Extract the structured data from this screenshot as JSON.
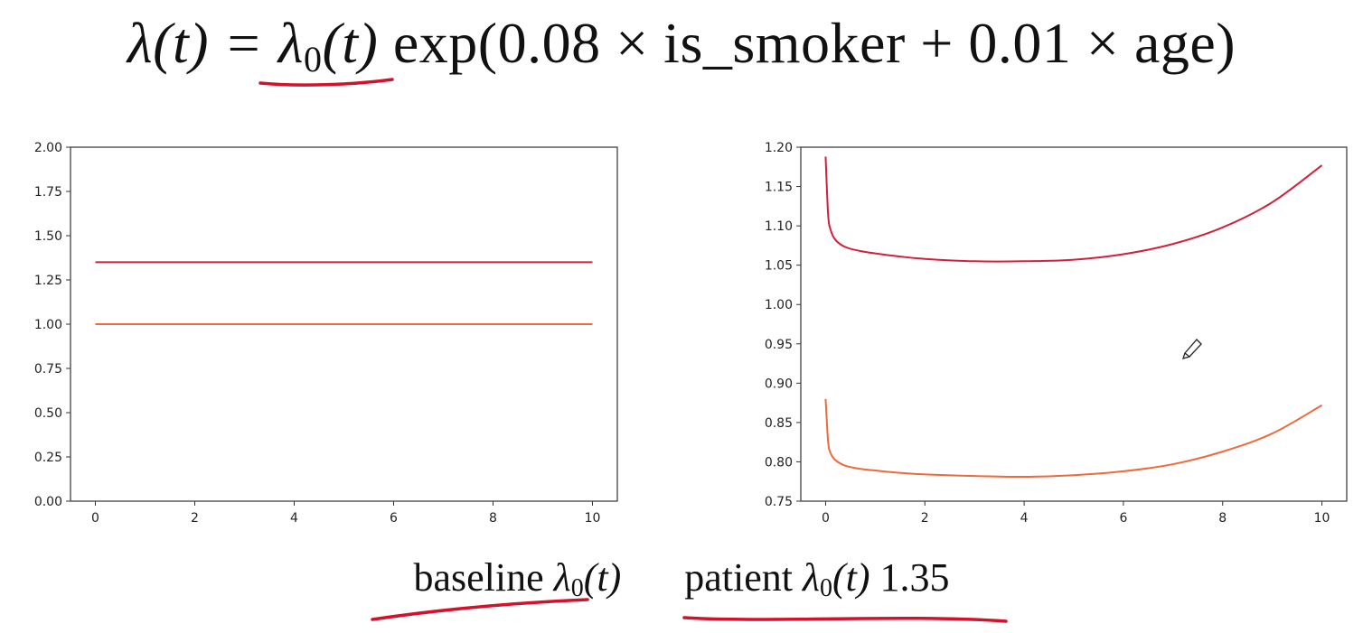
{
  "formula": {
    "lhs": "λ(t) =",
    "lambda0_base": "λ",
    "lambda0_sub": "0",
    "lambda0_arg": "(t)",
    "rhs": "exp(0.08 × is_smoker + 0.01 × age)"
  },
  "bottom_text": {
    "baseline_word": "baseline",
    "baseline_lambda": "λ",
    "baseline_sub": "0",
    "baseline_arg": "(t)",
    "patient_word": "patient",
    "patient_lambda": "λ",
    "patient_sub": "0",
    "patient_arg": "(t)",
    "patient_value": "1.35"
  },
  "colors": {
    "patient_line": "#d1203a",
    "baseline_line": "#ec6a3b",
    "ink_annotation": "#d3112b"
  },
  "chart_data": [
    {
      "type": "line",
      "title": "",
      "xlabel": "",
      "ylabel": "",
      "xlim": [
        -0.5,
        10.5
      ],
      "ylim": [
        0.0,
        2.0
      ],
      "x_ticks": [
        "0",
        "2",
        "4",
        "6",
        "8",
        "10"
      ],
      "y_ticks": [
        "0.00",
        "0.25",
        "0.50",
        "0.75",
        "1.00",
        "1.25",
        "1.50",
        "1.75",
        "2.00"
      ],
      "grid": false,
      "series": [
        {
          "color": "#d1203a",
          "x": [
            0,
            10
          ],
          "y": [
            1.35,
            1.35
          ]
        },
        {
          "color": "#ec6a3b",
          "x": [
            0,
            10
          ],
          "y": [
            1.0,
            1.0
          ]
        }
      ]
    },
    {
      "type": "line",
      "title": "",
      "xlabel": "",
      "ylabel": "",
      "xlim": [
        -0.5,
        10.5
      ],
      "ylim": [
        0.75,
        1.2
      ],
      "x_ticks": [
        "0",
        "2",
        "4",
        "6",
        "8",
        "10"
      ],
      "y_ticks": [
        "0.75",
        "0.80",
        "0.85",
        "0.90",
        "0.95",
        "1.00",
        "1.05",
        "1.10",
        "1.15",
        "1.20"
      ],
      "grid": false,
      "series": [
        {
          "color": "#d1203a",
          "x": [
            0.0,
            0.05,
            0.1,
            0.2,
            0.4,
            0.7,
            1.0,
            1.5,
            2.0,
            3.0,
            4.0,
            5.0,
            6.0,
            7.0,
            8.0,
            9.0,
            10.0
          ],
          "y": [
            1.188,
            1.115,
            1.095,
            1.082,
            1.073,
            1.068,
            1.065,
            1.061,
            1.058,
            1.055,
            1.055,
            1.057,
            1.064,
            1.077,
            1.098,
            1.13,
            1.177
          ]
        },
        {
          "color": "#ec6a3b",
          "x": [
            0.0,
            0.05,
            0.1,
            0.2,
            0.4,
            0.7,
            1.0,
            1.5,
            2.0,
            3.0,
            4.0,
            5.0,
            6.0,
            7.0,
            8.0,
            9.0,
            10.0
          ],
          "y": [
            0.88,
            0.826,
            0.811,
            0.802,
            0.795,
            0.791,
            0.789,
            0.786,
            0.784,
            0.782,
            0.781,
            0.783,
            0.788,
            0.797,
            0.813,
            0.836,
            0.872
          ]
        }
      ]
    }
  ]
}
